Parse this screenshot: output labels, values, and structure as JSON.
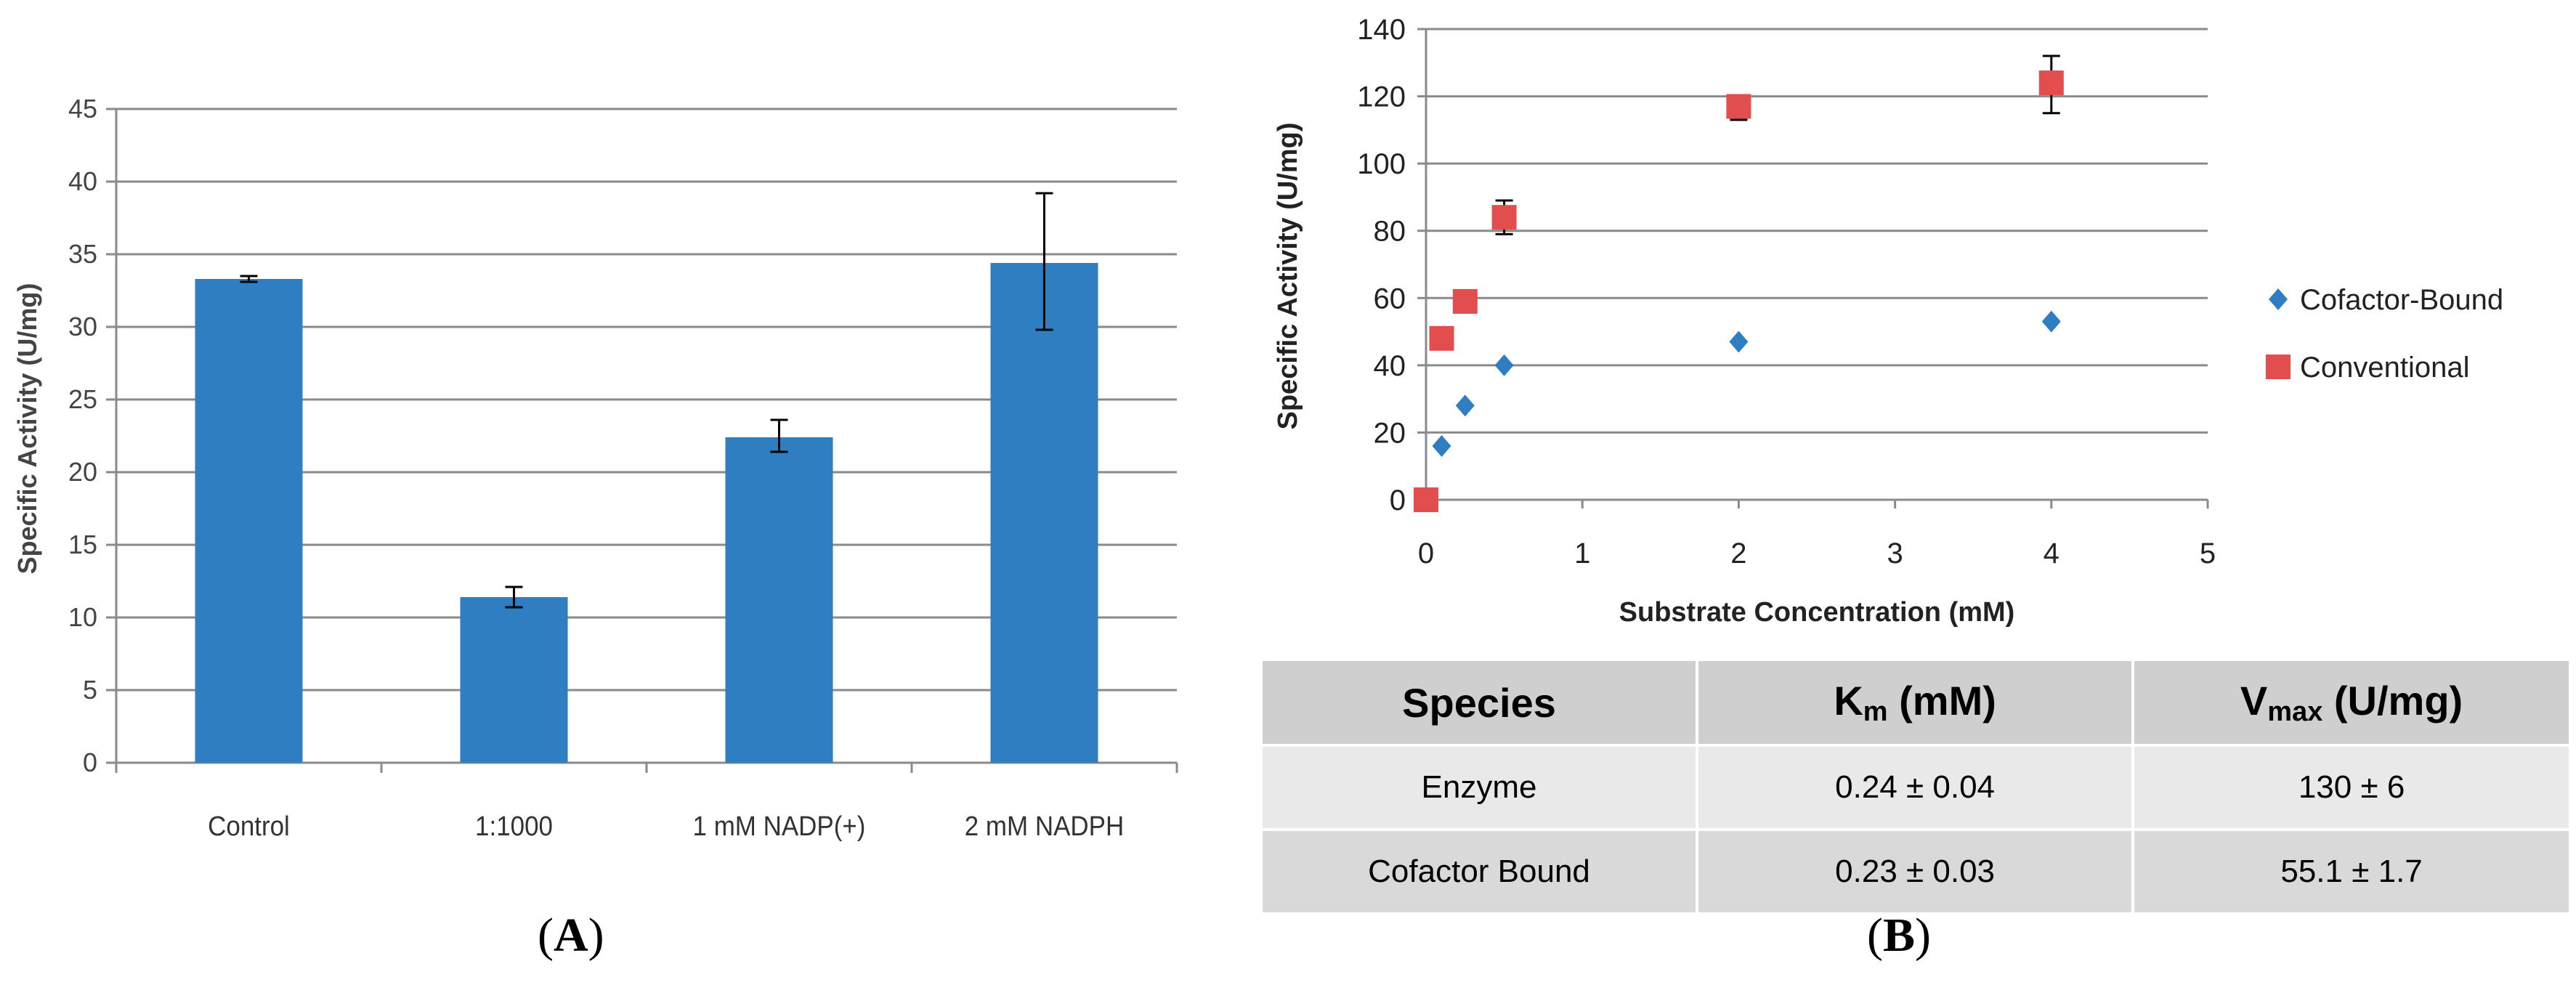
{
  "chart_data": [
    {
      "type": "bar",
      "panel": "A",
      "title": "",
      "xlabel": "",
      "ylabel": "Specific Activity (U/mg)",
      "ylim": [
        0,
        45
      ],
      "yticks": [
        0,
        5,
        10,
        15,
        20,
        25,
        30,
        35,
        40,
        45
      ],
      "categories": [
        "Control",
        "1:1000",
        "1 mM NADP(+)",
        "2 mM NADPH"
      ],
      "values": [
        33.3,
        11.4,
        22.4,
        34.4
      ],
      "error_low": [
        33.1,
        10.7,
        21.4,
        29.8
      ],
      "error_high": [
        33.5,
        12.1,
        23.6,
        39.2
      ],
      "bar_color": "#2e7ec1",
      "grid": true
    },
    {
      "type": "scatter",
      "panel": "B",
      "title": "",
      "xlabel": "Substrate Concentration (mM)",
      "ylabel": "Specific Activity (U/mg)",
      "xlim": [
        0,
        5
      ],
      "ylim": [
        0,
        140
      ],
      "xticks": [
        0,
        1,
        2,
        3,
        4,
        5
      ],
      "yticks": [
        0,
        20,
        40,
        60,
        80,
        100,
        120,
        140
      ],
      "grid": true,
      "legend_position": "right",
      "series": [
        {
          "name": "Cofactor-Bound",
          "marker": "diamond",
          "color": "#2e7ec1",
          "x": [
            0.1,
            0.25,
            0.5,
            2,
            4
          ],
          "y": [
            16,
            28,
            40,
            47,
            53
          ]
        },
        {
          "name": "Conventional",
          "marker": "square",
          "color": "#e24d4d",
          "x": [
            0,
            0.1,
            0.25,
            0.5,
            2,
            4
          ],
          "y": [
            0,
            48,
            59,
            84,
            117,
            124
          ],
          "error_low": [
            0,
            48,
            59,
            79,
            113,
            115
          ],
          "error_high": [
            0,
            48,
            59,
            89,
            119,
            132
          ]
        }
      ]
    }
  ],
  "table": {
    "headers": {
      "species": "Species",
      "km_main": "K",
      "km_sub": "m",
      "km_unit": " (mM)",
      "vmax_main": "V",
      "vmax_sub": "max",
      "vmax_unit": " (U/mg)"
    },
    "rows": [
      {
        "species": "Enzyme",
        "km": "0.24 ± 0.04",
        "vmax": "130 ± 6"
      },
      {
        "species": "Cofactor Bound",
        "km": "0.23 ± 0.03",
        "vmax": "55.1 ± 1.7"
      }
    ]
  },
  "panel_labels": {
    "a_open": "(",
    "a_letter": "A",
    "a_close": ")",
    "b_open": "(",
    "b_letter": "B",
    "b_close": ")"
  }
}
